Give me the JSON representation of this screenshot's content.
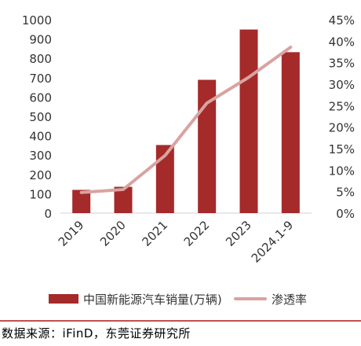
{
  "chart_data": {
    "type": "bar",
    "categories": [
      "2019",
      "2020",
      "2021",
      "2022",
      "2023",
      "2024.1-9"
    ],
    "series": [
      {
        "name": "中国新能源汽车销量(万辆)",
        "type": "bar",
        "axis": "left",
        "values": [
          120,
          136,
          352,
          689,
          949,
          832
        ],
        "color": "#a52a2a"
      },
      {
        "name": "渗透率",
        "type": "line",
        "axis": "right",
        "values": [
          0.048,
          0.055,
          0.134,
          0.256,
          0.316,
          0.386
        ],
        "color": "#d9a3a0"
      }
    ],
    "y_left": {
      "min": 0,
      "max": 1000,
      "ticks": [
        0,
        100,
        200,
        300,
        400,
        500,
        600,
        700,
        800,
        900,
        1000
      ]
    },
    "y_right": {
      "min": 0,
      "max": 0.45,
      "ticks": [
        "0%",
        "5%",
        "10%",
        "15%",
        "20%",
        "25%",
        "30%",
        "35%",
        "40%",
        "45%"
      ]
    },
    "grid": false,
    "legend_position": "bottom"
  },
  "legend": {
    "bar_label": "中国新能源汽车销量(万辆)",
    "line_label": "渗透率"
  },
  "source": "数据来源：iFinD，东莞证券研究所"
}
